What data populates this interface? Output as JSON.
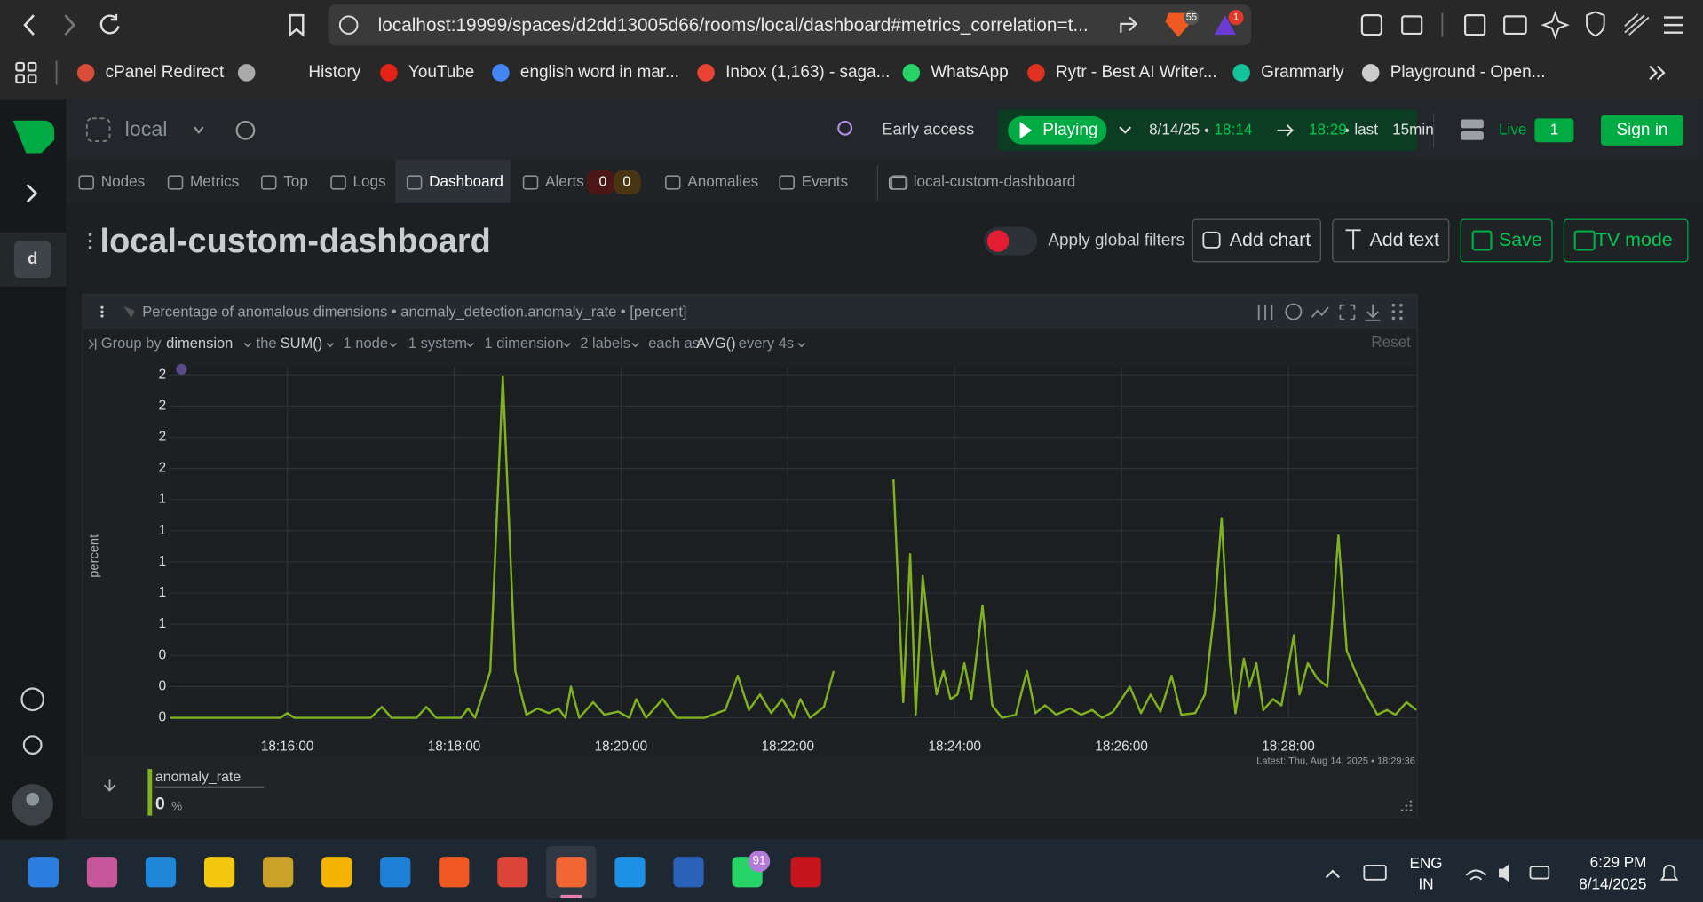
{
  "browser": {
    "url": "localhost:19999/spaces/d2dd13005d66/rooms/local/dashboard#metrics_correlation=t...",
    "shields_badge": "55",
    "rewards_badge": "1",
    "bookmarks": [
      "cPanel Redirect",
      "History",
      "YouTube",
      "english word in mar...",
      "Inbox (1,163) - saga...",
      "WhatsApp",
      "Rytr - Best AI Writer...",
      "Grammarly",
      "Playground - Open..."
    ]
  },
  "app": {
    "room": "local",
    "space_avatar": "d",
    "early_access": "Early access",
    "playing": "Playing",
    "date": "8/14/25",
    "from": "18:14",
    "to": "18:29",
    "last": "last",
    "duration": "15min",
    "live": "Live",
    "live_count": "1",
    "sign_in": "Sign in",
    "tabs": [
      "Nodes",
      "Metrics",
      "Top",
      "Logs",
      "Dashboard",
      "Alerts",
      "Anomalies",
      "Events",
      "local-custom-dashboard"
    ],
    "alert_counts": [
      "0",
      "0"
    ]
  },
  "dashboard": {
    "title": "local-custom-dashboard",
    "apply_filters": "Apply global filters",
    "buttons": [
      "Add chart",
      "Add text",
      "Save",
      "TV mode"
    ],
    "toolbar": [
      "Group by",
      "dimension",
      "the",
      "SUM()",
      "1 node",
      "1 system",
      "1 dimension",
      "2 labels",
      "each as",
      "AVG()",
      "every 4s"
    ],
    "reset": "Reset"
  },
  "chart_data": {
    "type": "line",
    "title": "Percentage of anomalous dimensions • anomaly_detection.anomaly_rate • [percent]",
    "y_label": "percent",
    "x": [
      "18:14:36",
      "18:15:00",
      "18:15:40",
      "18:15:55",
      "18:16:00",
      "18:16:05",
      "18:17:00",
      "18:17:08",
      "18:17:15",
      "18:17:33",
      "18:17:40",
      "18:17:47",
      "18:18:05",
      "18:18:10",
      "18:18:15",
      "18:18:26",
      "18:18:35",
      "18:18:44",
      "18:18:52",
      "18:19:00",
      "18:19:08",
      "18:19:15",
      "18:19:20",
      "18:19:24",
      "18:19:30",
      "18:19:40",
      "18:19:48",
      "18:19:58",
      "18:20:06",
      "18:20:11",
      "18:20:18",
      "18:20:30",
      "18:20:40",
      "18:21:00",
      "18:21:15",
      "18:21:24",
      "18:21:32",
      "18:21:40",
      "18:21:48",
      "18:21:56",
      "18:22:04",
      "18:22:09",
      "18:22:16",
      "18:22:26",
      "18:22:33",
      "18:22:55",
      "18:23:16",
      "18:23:23",
      "18:23:28",
      "18:23:32",
      "18:23:37",
      "18:23:42",
      "18:23:47",
      "18:23:52",
      "18:23:57",
      "18:24:02",
      "18:24:07",
      "18:24:12",
      "18:24:20",
      "18:24:27",
      "18:24:34",
      "18:24:44",
      "18:24:52",
      "18:24:58",
      "18:25:05",
      "18:25:13",
      "18:25:23",
      "18:25:31",
      "18:25:39",
      "18:25:46",
      "18:25:54",
      "18:26:06",
      "18:26:14",
      "18:26:21",
      "18:26:28",
      "18:26:36",
      "18:26:43",
      "18:26:53",
      "18:27:00",
      "18:27:07",
      "18:27:12",
      "18:27:18",
      "18:27:22",
      "18:27:28",
      "18:27:32",
      "18:27:37",
      "18:27:42",
      "18:27:49",
      "18:27:55",
      "18:28:04",
      "18:28:08",
      "18:28:14",
      "18:28:21",
      "18:28:28",
      "18:28:36",
      "18:28:42",
      "18:28:48",
      "18:28:56",
      "18:29:04",
      "18:29:11",
      "18:29:17",
      "18:29:25",
      "18:29:32"
    ],
    "series": [
      {
        "name": "anomaly_rate",
        "color": "#7fb21c",
        "values": [
          0,
          0,
          0,
          0,
          0.03,
          0,
          0,
          0.07,
          0,
          0,
          0.07,
          0,
          0,
          0.06,
          0,
          0.3,
          2.19,
          0.3,
          0.02,
          0.06,
          0.03,
          0.06,
          0,
          0.2,
          0,
          0.1,
          0.02,
          0.04,
          0,
          0.12,
          0,
          0.12,
          0,
          0,
          0.05,
          0.27,
          0.05,
          0.15,
          0.03,
          0.12,
          0,
          0.12,
          0,
          0.07,
          0.3,
          null,
          1.53,
          0.1,
          1.05,
          0.02,
          0.91,
          0.5,
          0.15,
          0.3,
          0.12,
          0.15,
          0.35,
          0.12,
          0.72,
          0.08,
          0,
          0.02,
          0.3,
          0.03,
          0.08,
          0.02,
          0.06,
          0.02,
          0.05,
          0,
          0.04,
          0.2,
          0.03,
          0.15,
          0.04,
          0.27,
          0.02,
          0.03,
          0.15,
          0.7,
          1.28,
          0.35,
          0.03,
          0.38,
          0.2,
          0.35,
          0.05,
          0.12,
          0.08,
          0.53,
          0.15,
          0.35,
          0.25,
          0.2,
          1.17,
          0.43,
          0.3,
          0.15,
          0.02,
          0.05,
          0.02,
          0.1,
          0.05
        ]
      }
    ],
    "xlim": [
      "18:14:36",
      "18:29:32"
    ],
    "xticks": [
      "18:16:00",
      "18:18:00",
      "18:20:00",
      "18:22:00",
      "18:24:00",
      "18:26:00",
      "18:28:00"
    ],
    "ylim": [
      0,
      2.25
    ],
    "yticks": [
      0,
      {
        "value": 0.2,
        "label": "0"
      },
      {
        "value": 0.4,
        "label": "0"
      },
      {
        "value": 0.6,
        "label": "1"
      },
      {
        "value": 0.8,
        "label": "1"
      },
      1,
      {
        "value": 1.2,
        "label": "1"
      },
      {
        "value": 1.4,
        "label": "1"
      },
      {
        "value": 1.6,
        "label": "2"
      },
      {
        "value": 1.8,
        "label": "2"
      },
      2,
      {
        "value": 2.2,
        "label": "2"
      }
    ],
    "grid": true,
    "latest": "Latest: Thu, Aug 14, 2025 • 18:29:36",
    "legend_value": 0,
    "legend_unit": "%"
  },
  "taskbar": {
    "whatsapp_badge": "91",
    "language": "ENG",
    "region": "IN",
    "time": "6:29 PM",
    "date": "8/14/2025"
  }
}
